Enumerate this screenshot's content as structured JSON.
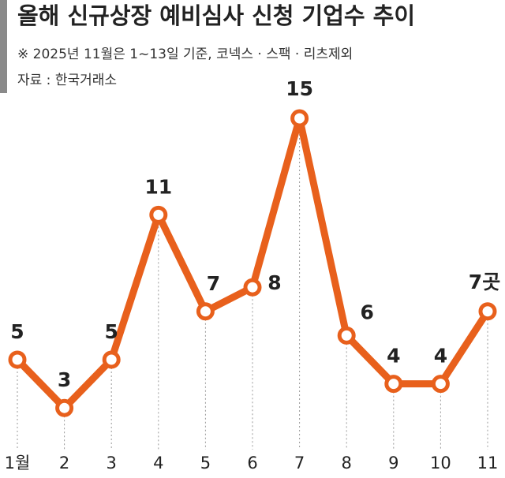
{
  "chart_data": {
    "type": "line",
    "title": "올해 신규상장 예비심사 신청 기업수 추이",
    "subtitle": "※ 2025년 11월은 1~13일 기준, 코넥스 · 스팩 · 리츠제외",
    "source": "자료 : 한국거래소",
    "categories": [
      "1월",
      "2",
      "3",
      "4",
      "5",
      "6",
      "7",
      "8",
      "9",
      "10",
      "11"
    ],
    "values": [
      5,
      3,
      5,
      11,
      7,
      8,
      15,
      6,
      4,
      4,
      7
    ],
    "value_labels": [
      "5",
      "3",
      "5",
      "11",
      "7",
      "8",
      "15",
      "6",
      "4",
      "4",
      "7곳"
    ],
    "color": "#e8601c"
  }
}
